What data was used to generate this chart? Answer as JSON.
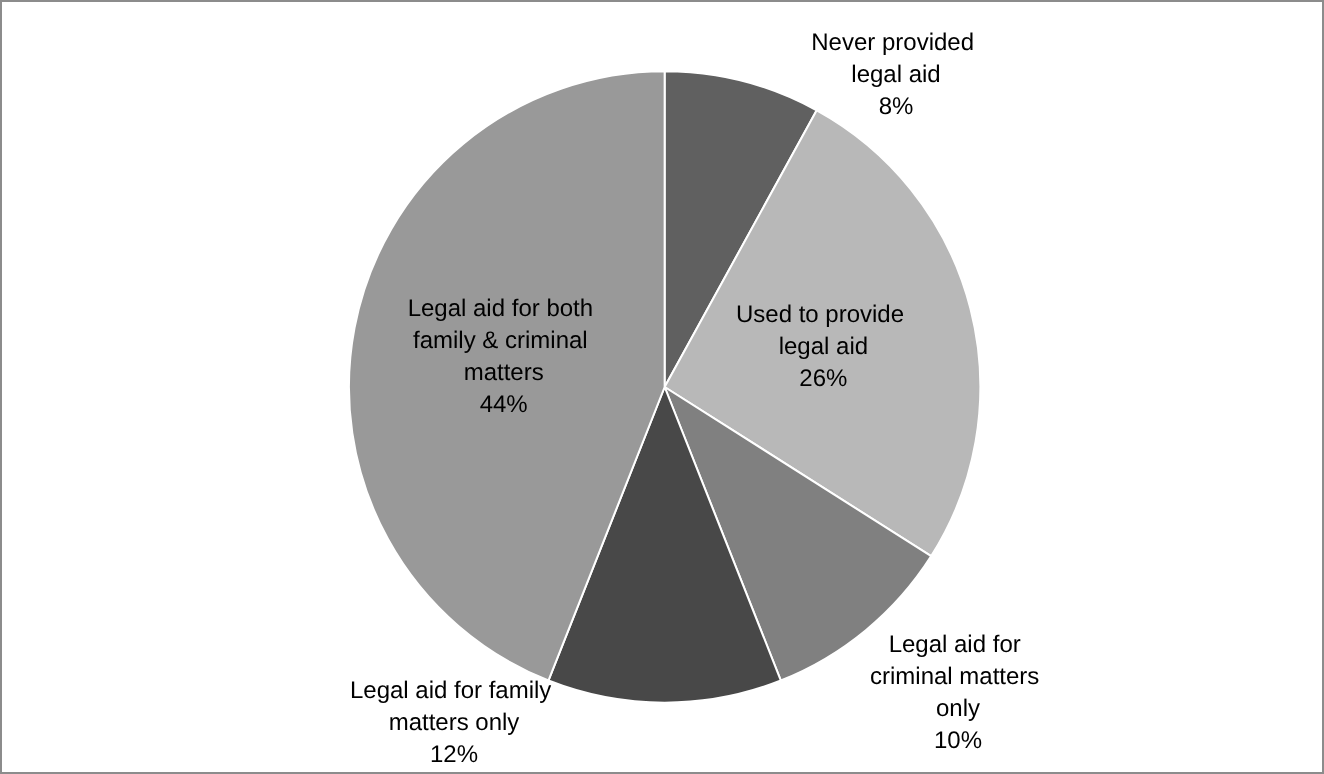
{
  "chart_data": {
    "type": "pie",
    "categories": [
      "Never provided legal aid",
      "Used to provide legal aid",
      "Legal aid for criminal matters only",
      "Legal aid for family matters only",
      "Legal aid for both family & criminal matters"
    ],
    "values": [
      8,
      26,
      10,
      12,
      44
    ],
    "value_labels": [
      "8%",
      "26%",
      "10%",
      "12%",
      "44%"
    ],
    "colors": [
      "#606060",
      "#b8b8b8",
      "#808080",
      "#484848",
      "#999999"
    ],
    "legend": false
  }
}
